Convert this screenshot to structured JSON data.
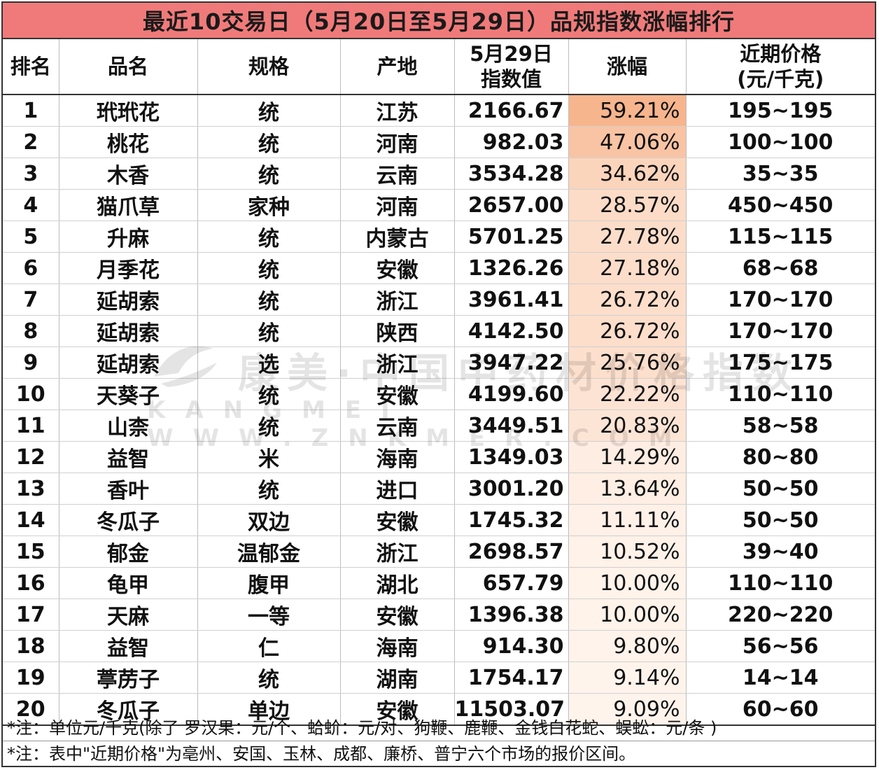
{
  "title": "最近10交易日（5月20日至5月29日）品规指数涨幅排行",
  "headers": {
    "rank": "排名",
    "name": "品名",
    "spec": "规格",
    "origin": "产地",
    "index_line1": "5月29日",
    "index_line2": "指数值",
    "change": "涨幅",
    "price_line1": "近期价格",
    "price_line2": "(元/千克)"
  },
  "rows": [
    {
      "rank": "1",
      "name": "玳玳花",
      "spec": "统",
      "origin": "江苏",
      "index": "2166.67",
      "change": "59.21%",
      "price": "195~195",
      "change_value": 59.21
    },
    {
      "rank": "2",
      "name": "桃花",
      "spec": "统",
      "origin": "河南",
      "index": "982.03",
      "change": "47.06%",
      "price": "100~100",
      "change_value": 47.06
    },
    {
      "rank": "3",
      "name": "木香",
      "spec": "统",
      "origin": "云南",
      "index": "3534.28",
      "change": "34.62%",
      "price": "35~35",
      "change_value": 34.62
    },
    {
      "rank": "4",
      "name": "猫爪草",
      "spec": "家种",
      "origin": "河南",
      "index": "2657.00",
      "change": "28.57%",
      "price": "450~450",
      "change_value": 28.57
    },
    {
      "rank": "5",
      "name": "升麻",
      "spec": "统",
      "origin": "内蒙古",
      "index": "5701.25",
      "change": "27.78%",
      "price": "115~115",
      "change_value": 27.78
    },
    {
      "rank": "6",
      "name": "月季花",
      "spec": "统",
      "origin": "安徽",
      "index": "1326.26",
      "change": "27.18%",
      "price": "68~68",
      "change_value": 27.18
    },
    {
      "rank": "7",
      "name": "延胡索",
      "spec": "统",
      "origin": "浙江",
      "index": "3961.41",
      "change": "26.72%",
      "price": "170~170",
      "change_value": 26.72
    },
    {
      "rank": "8",
      "name": "延胡索",
      "spec": "统",
      "origin": "陕西",
      "index": "4142.50",
      "change": "26.72%",
      "price": "170~170",
      "change_value": 26.72
    },
    {
      "rank": "9",
      "name": "延胡索",
      "spec": "选",
      "origin": "浙江",
      "index": "3947.22",
      "change": "25.76%",
      "price": "175~175",
      "change_value": 25.76
    },
    {
      "rank": "10",
      "name": "天葵子",
      "spec": "统",
      "origin": "安徽",
      "index": "4199.60",
      "change": "22.22%",
      "price": "110~110",
      "change_value": 22.22
    },
    {
      "rank": "11",
      "name": "山柰",
      "spec": "统",
      "origin": "云南",
      "index": "3449.51",
      "change": "20.83%",
      "price": "58~58",
      "change_value": 20.83
    },
    {
      "rank": "12",
      "name": "益智",
      "spec": "米",
      "origin": "海南",
      "index": "1349.03",
      "change": "14.29%",
      "price": "80~80",
      "change_value": 14.29
    },
    {
      "rank": "13",
      "name": "香叶",
      "spec": "统",
      "origin": "进口",
      "index": "3001.20",
      "change": "13.64%",
      "price": "50~50",
      "change_value": 13.64
    },
    {
      "rank": "14",
      "name": "冬瓜子",
      "spec": "双边",
      "origin": "安徽",
      "index": "1745.32",
      "change": "11.11%",
      "price": "50~50",
      "change_value": 11.11
    },
    {
      "rank": "15",
      "name": "郁金",
      "spec": "温郁金",
      "origin": "浙江",
      "index": "2698.57",
      "change": "10.52%",
      "price": "39~40",
      "change_value": 10.52
    },
    {
      "rank": "16",
      "name": "龟甲",
      "spec": "腹甲",
      "origin": "湖北",
      "index": "657.79",
      "change": "10.00%",
      "price": "110~110",
      "change_value": 10.0
    },
    {
      "rank": "17",
      "name": "天麻",
      "spec": "一等",
      "origin": "安徽",
      "index": "1396.38",
      "change": "10.00%",
      "price": "220~220",
      "change_value": 10.0
    },
    {
      "rank": "18",
      "name": "益智",
      "spec": "仁",
      "origin": "海南",
      "index": "914.30",
      "change": "9.80%",
      "price": "56~56",
      "change_value": 9.8
    },
    {
      "rank": "19",
      "name": "葶苈子",
      "spec": "统",
      "origin": "湖南",
      "index": "1754.17",
      "change": "9.14%",
      "price": "14~14",
      "change_value": 9.14
    },
    {
      "rank": "20",
      "name": "冬瓜子",
      "spec": "单边",
      "origin": "安徽",
      "index": "11503.07",
      "change": "9.09%",
      "price": "60~60",
      "change_value": 9.09
    }
  ],
  "notes": [
    "*注：单位元/千克(除了 罗汉果：元/个、蛤蚧：元/对、狗鞭、鹿鞭、金钱白花蛇、蜈蚣：元/条 )",
    "*注：表中\"近期价格\"为亳州、安国、玉林、成都、廉桥、普宁六个市场的报价区间。"
  ],
  "watermark": {
    "line1": "康美·中国中药材价格指数",
    "line2": "KANGMEI WWW.ZNKMER.COM"
  },
  "colors": {
    "title_bg": "#f07a7a",
    "change_high": "#f7b58d",
    "change_low": "#fff4ec"
  }
}
